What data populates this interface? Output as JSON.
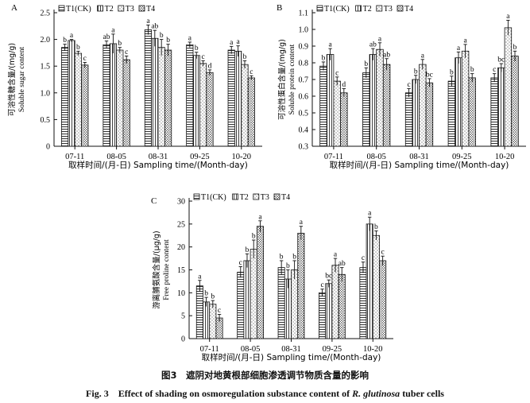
{
  "figure": {
    "caption_cn": "图3　遮阴对地黄根部细胞渗透调节物质含量的影响",
    "caption_en_prefix": "Fig. 3　Effect of shading on osmoregulation substance content of ",
    "caption_en_species": "R. glutinosa",
    "caption_en_suffix": " tuber cells"
  },
  "chart_data": [
    {
      "type": "bar",
      "panel": "A",
      "ylabel_cn": "可溶性糖含量/(mg/g)",
      "ylabel_en": "Soluble sugar content",
      "xlabel": "取样时间/(月-日) Sampling time/(Month-day)",
      "ylim": [
        0,
        2.5
      ],
      "yticks": [
        "0",
        "0.5",
        "1.0",
        "1.5",
        "2.0",
        "2.5"
      ],
      "categories": [
        "07-11",
        "08-05",
        "08-31",
        "09-25",
        "10-20"
      ],
      "legend": [
        "T1(CK)",
        "T2",
        "T3",
        "T4"
      ],
      "series": [
        {
          "name": "T1(CK)",
          "values": [
            1.85,
            1.9,
            2.18,
            1.9,
            1.8
          ],
          "errors": [
            0.06,
            0.07,
            0.09,
            0.05,
            0.07
          ],
          "letters": [
            "b",
            "ab",
            "a",
            "a",
            "a"
          ]
        },
        {
          "name": "T2",
          "values": [
            1.98,
            1.92,
            2.02,
            1.7,
            1.78
          ],
          "errors": [
            0.02,
            0.18,
            0.15,
            0.06,
            0.1
          ],
          "letters": [
            "a",
            "a",
            "ab",
            "b",
            "a"
          ]
        },
        {
          "name": "T3",
          "values": [
            1.74,
            1.8,
            1.85,
            1.55,
            1.53
          ],
          "errors": [
            0.04,
            0.05,
            0.15,
            0.05,
            0.07
          ],
          "letters": [
            "b",
            "b",
            "b",
            "c",
            "b"
          ]
        },
        {
          "name": "T4",
          "values": [
            1.52,
            1.62,
            1.8,
            1.38,
            1.28
          ],
          "errors": [
            0.05,
            0.07,
            0.11,
            0.05,
            0.04
          ],
          "letters": [
            "c",
            "c",
            "b",
            "d",
            "c"
          ]
        }
      ]
    },
    {
      "type": "bar",
      "panel": "B",
      "ylabel_cn": "可溶性蛋白含量/(mg/g)",
      "ylabel_en": "Soluble protein content",
      "xlabel": "取样时间/(月-日) Sampling time/(Month-day)",
      "ylim": [
        0.3,
        1.1
      ],
      "yticks": [
        "0.3",
        "0.4",
        "0.5",
        "0.6",
        "0.7",
        "0.8",
        "0.9",
        "1.0",
        "1.1"
      ],
      "categories": [
        "07-11",
        "08-05",
        "08-31",
        "09-25",
        "10-20"
      ],
      "legend": [
        "T1(CK)",
        "T2",
        "T3",
        "T4"
      ],
      "series": [
        {
          "name": "T1(CK)",
          "values": [
            0.78,
            0.74,
            0.62,
            0.69,
            0.71
          ],
          "errors": [
            0.025,
            0.03,
            0.025,
            0.03,
            0.025
          ],
          "letters": [
            "b",
            "b",
            "c",
            "b",
            "c"
          ]
        },
        {
          "name": "T2",
          "values": [
            0.85,
            0.85,
            0.7,
            0.83,
            0.77
          ],
          "errors": [
            0.035,
            0.035,
            0.025,
            0.035,
            0.025
          ],
          "letters": [
            "a",
            "ab",
            "b",
            "a",
            "bc"
          ]
        },
        {
          "name": "T3",
          "values": [
            0.69,
            0.88,
            0.79,
            0.87,
            1.01
          ],
          "errors": [
            0.025,
            0.04,
            0.03,
            0.04,
            0.045
          ],
          "letters": [
            "c",
            "a",
            "a",
            "a",
            "a"
          ]
        },
        {
          "name": "T4",
          "values": [
            0.62,
            0.79,
            0.68,
            0.71,
            0.84
          ],
          "errors": [
            0.025,
            0.035,
            0.025,
            0.025,
            0.03
          ],
          "letters": [
            "d",
            "ab",
            "bc",
            "b",
            "b"
          ]
        }
      ]
    },
    {
      "type": "bar",
      "panel": "C",
      "ylabel_cn": "游离脯氨酸含量/(μg/g)",
      "ylabel_en": "Free proline content",
      "xlabel": "取样时间/(月-日) Sampling time/(Month-day)",
      "ylim": [
        0,
        30
      ],
      "yticks": [
        "0",
        "5",
        "10",
        "15",
        "20",
        "25",
        "30"
      ],
      "categories": [
        "07-11",
        "08-05",
        "08-31",
        "09-25",
        "10-20"
      ],
      "legend": [
        "T1(CK)",
        "T2",
        "T3",
        "T4"
      ],
      "series": [
        {
          "name": "T1(CK)",
          "values": [
            11.5,
            14.5,
            15.5,
            10.0,
            15.5
          ],
          "errors": [
            1.2,
            1.2,
            1.5,
            0.8,
            1.2
          ],
          "letters": [
            "a",
            "c",
            "b",
            "c",
            "c"
          ]
        },
        {
          "name": "T2",
          "values": [
            8.0,
            17.0,
            13.0,
            12.0,
            25.0
          ],
          "errors": [
            1.0,
            1.5,
            2.0,
            0.8,
            1.5
          ],
          "letters": [
            "b",
            "b",
            "b",
            "bc",
            "a"
          ]
        },
        {
          "name": "T3",
          "values": [
            7.5,
            19.5,
            15.0,
            16.0,
            22.5
          ],
          "errors": [
            0.8,
            2.0,
            2.0,
            1.5,
            1.0
          ],
          "letters": [
            "b",
            "b",
            "b",
            "a",
            "b"
          ]
        },
        {
          "name": "T4",
          "values": [
            4.5,
            24.5,
            23.0,
            14.0,
            17.0
          ],
          "errors": [
            0.8,
            1.2,
            1.5,
            1.5,
            1.0
          ],
          "letters": [
            "c",
            "a",
            "a",
            "ab",
            "c"
          ]
        }
      ]
    }
  ]
}
